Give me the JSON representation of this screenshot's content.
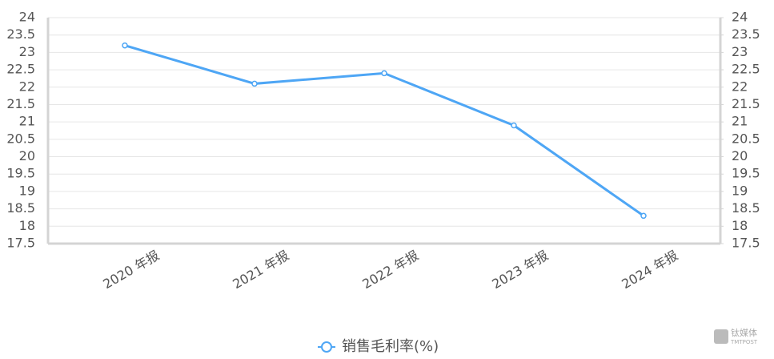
{
  "chart_data": {
    "type": "line",
    "categories": [
      "2020 年报",
      "2021 年报",
      "2022 年报",
      "2023 年报",
      "2024 年报"
    ],
    "series": [
      {
        "name": "销售毛利率(%)",
        "color": "#4ea6f5",
        "values": [
          23.2,
          22.1,
          22.4,
          20.9,
          18.3
        ]
      }
    ],
    "ylim": [
      17.5,
      24
    ],
    "yticks": [
      17.5,
      18,
      18.5,
      19,
      19.5,
      20,
      20.5,
      21,
      21.5,
      22,
      22.5,
      23,
      23.5,
      24
    ],
    "y2lim": [
      17.5,
      24
    ],
    "y2ticks": [
      17.5,
      18,
      18.5,
      19,
      19.5,
      20,
      20.5,
      21,
      21.5,
      22,
      22.5,
      23,
      23.5,
      24
    ],
    "grid": true,
    "legend": "bottom",
    "watermark": {
      "text": "钛媒体",
      "subtext": "TMTPOST"
    }
  }
}
